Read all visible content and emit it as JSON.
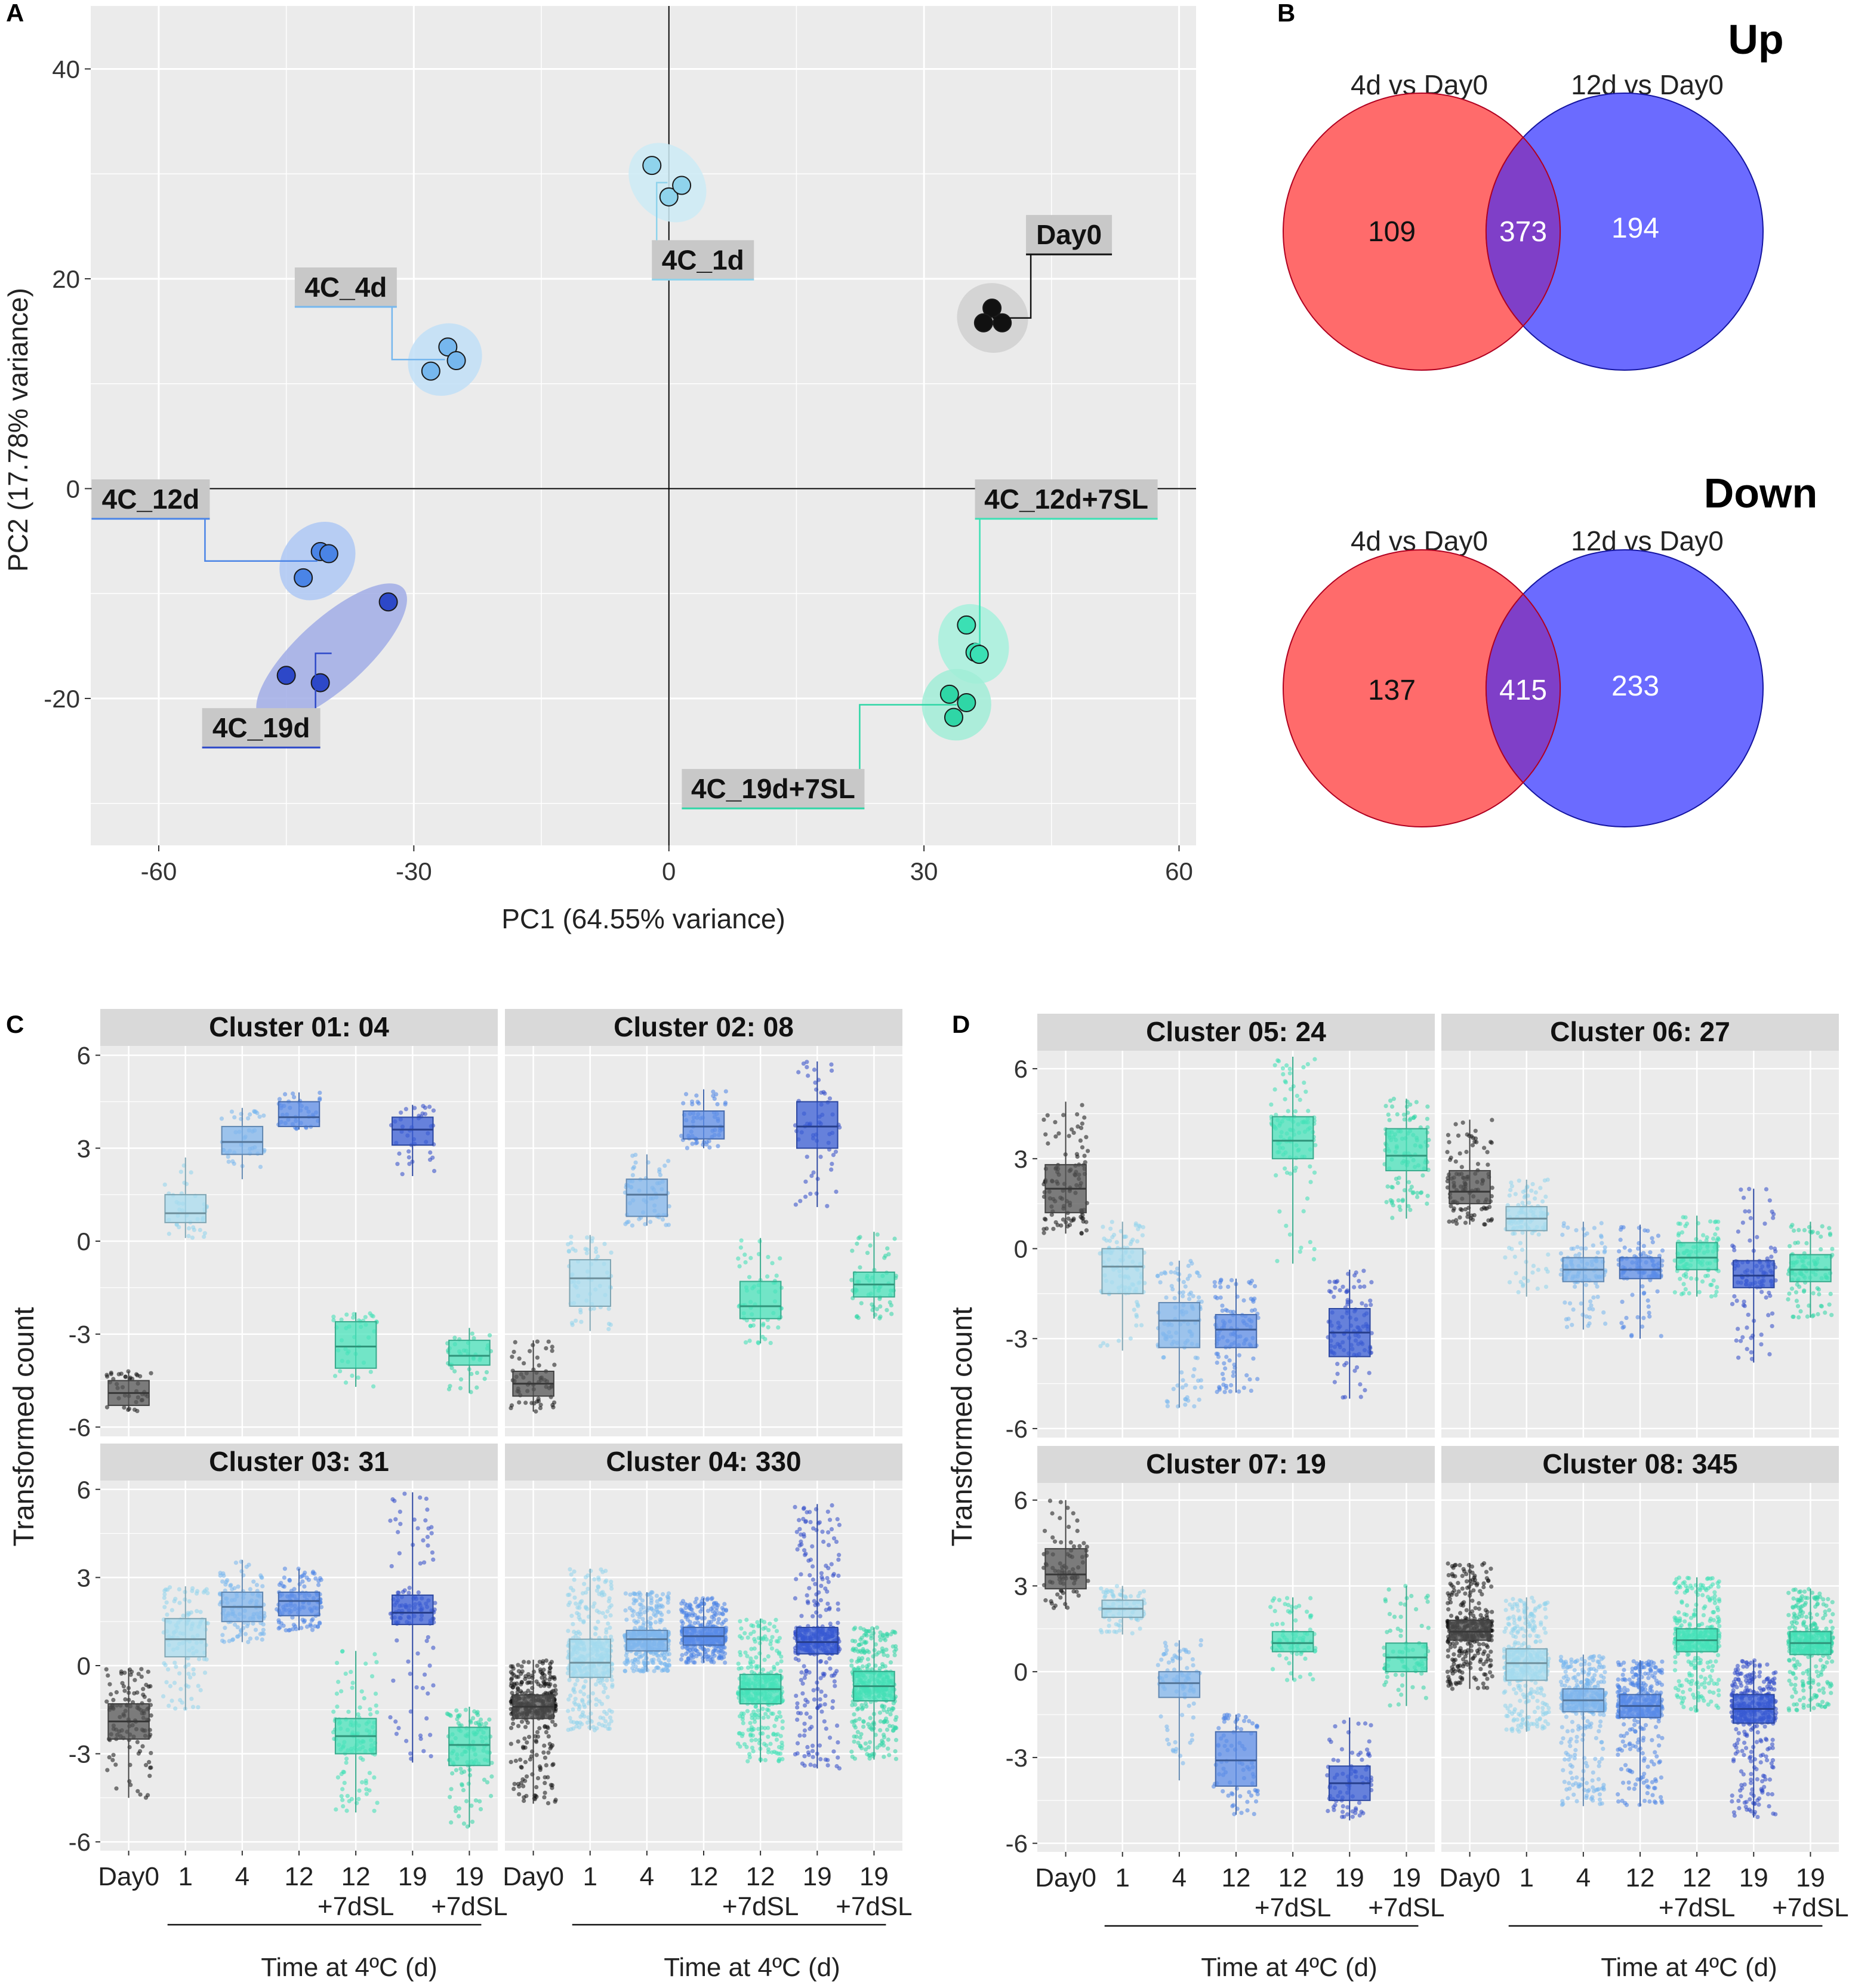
{
  "colors": {
    "panel_bg": "#ebebeb",
    "strip_bg": "#d9d9d9",
    "label_bg": "#c8c8c8",
    "day0": "#111111",
    "d1": "#8fd3ec",
    "d4": "#76b7ee",
    "d12": "#4a84e6",
    "d19": "#2d48c8",
    "d12sl": "#3be0b4",
    "d19sl": "#2fd6a6",
    "venn_left": "#ff6b6b",
    "venn_right": "#6b6bff",
    "venn_mid": "#7f3fc8",
    "box_day0": "#555555",
    "box_d1": "#a9dcef",
    "box_d4": "#82b5ec",
    "box_d12": "#5d8ee8",
    "box_d19": "#3a5ed6",
    "box_sl": "#49e3bb"
  },
  "panel_letters": {
    "a": "A",
    "b": "B",
    "c": "C",
    "d": "D"
  },
  "chart_data": [
    {
      "panel": "A",
      "type": "scatter",
      "xlabel": "PC1 (64.55% variance)",
      "ylabel": "PC2 (17.78% variance)",
      "xlim": [
        -68,
        62
      ],
      "ylim": [
        -34,
        46
      ],
      "xticks": [
        -60,
        -30,
        0,
        30,
        60
      ],
      "yticks": [
        -20,
        0,
        20,
        40
      ],
      "tick_labels_x": [
        "-60",
        "-30",
        "0",
        "30",
        "60"
      ],
      "tick_labels_y": [
        "-20",
        "0",
        "20",
        "40"
      ],
      "groups": [
        {
          "name": "4C_1d",
          "color_key": "d1",
          "points": [
            [
              -2,
              30.8
            ],
            [
              0,
              27.8
            ],
            [
              1.5,
              28.9
            ]
          ]
        },
        {
          "name": "Day0",
          "color_key": "day0",
          "points": [
            [
              38,
              17.2
            ],
            [
              37,
              15.8
            ],
            [
              39.2,
              15.8
            ]
          ]
        },
        {
          "name": "4C_4d",
          "color_key": "d4",
          "points": [
            [
              -28,
              11.2
            ],
            [
              -26,
              13.5
            ],
            [
              -25,
              12.2
            ]
          ]
        },
        {
          "name": "4C_12d",
          "color_key": "d12",
          "points": [
            [
              -41,
              -6
            ],
            [
              -43,
              -8.5
            ],
            [
              -40,
              -6.2
            ]
          ]
        },
        {
          "name": "4C_19d",
          "color_key": "d19",
          "points": [
            [
              -33,
              -10.8
            ],
            [
              -45,
              -17.8
            ],
            [
              -41,
              -18.5
            ]
          ]
        },
        {
          "name": "4C_12d+7SL",
          "color_key": "d12sl",
          "points": [
            [
              35,
              -13
            ],
            [
              36,
              -15.6
            ],
            [
              36.5,
              -15.8
            ]
          ]
        },
        {
          "name": "4C_19d+7SL",
          "color_key": "d19sl",
          "points": [
            [
              33,
              -19.6
            ],
            [
              35,
              -20.4
            ],
            [
              33.5,
              -21.8
            ]
          ]
        }
      ]
    },
    {
      "panel": "B",
      "type": "venn",
      "diagrams": [
        {
          "title": "Up",
          "left_label": "4d vs Day0",
          "right_label": "12d vs Day0",
          "left_only": "109",
          "both": "373",
          "right_only": "194"
        },
        {
          "title": "Down",
          "left_label": "4d vs Day0",
          "right_label": "12d vs Day0",
          "left_only": "137",
          "both": "415",
          "right_only": "233"
        }
      ]
    },
    {
      "panel": "C",
      "type": "box",
      "ylabel": "Transformed count",
      "xlabel": "Time at 4ºC (d)",
      "ylim": [
        -6.3,
        6.3
      ],
      "yticks": [
        -6,
        -3,
        0,
        3,
        6
      ],
      "tick_labels_y": [
        "-6",
        "-3",
        "0",
        "3",
        "6"
      ],
      "categories": [
        "Day0",
        "1",
        "4",
        "12",
        "12",
        "19",
        "19"
      ],
      "category_sub": [
        "",
        "",
        "",
        "",
        "+7dSL",
        "",
        "+7dSL"
      ],
      "facets": [
        {
          "title": "Cluster 01: 04",
          "n": 40,
          "boxes": [
            [
              -5.5,
              -5.3,
              -4.9,
              -4.5,
              -4.2
            ],
            [
              0.1,
              0.6,
              0.9,
              1.5,
              2.7
            ],
            [
              2.0,
              2.8,
              3.2,
              3.7,
              4.3
            ],
            [
              3.6,
              3.7,
              4.0,
              4.5,
              4.8
            ],
            [
              -4.7,
              -4.1,
              -3.4,
              -2.6,
              -2.3
            ],
            [
              2.1,
              3.1,
              3.6,
              4.0,
              4.4
            ],
            [
              -4.9,
              -4.0,
              -3.7,
              -3.2,
              -2.8
            ]
          ]
        },
        {
          "title": "Cluster 02: 08",
          "n": 60,
          "boxes": [
            [
              -5.5,
              -5.0,
              -4.6,
              -4.2,
              -3.2
            ],
            [
              -2.9,
              -2.1,
              -1.2,
              -0.6,
              0.2
            ],
            [
              0.5,
              0.8,
              1.5,
              2.0,
              2.8
            ],
            [
              3.0,
              3.3,
              3.7,
              4.2,
              4.9
            ],
            [
              -3.3,
              -2.5,
              -2.1,
              -1.3,
              0.1
            ],
            [
              1.1,
              3.0,
              3.7,
              4.5,
              5.8
            ],
            [
              -2.5,
              -1.8,
              -1.4,
              -1.0,
              0.3
            ]
          ]
        },
        {
          "title": "Cluster 03: 31",
          "n": 120,
          "boxes": [
            [
              -4.5,
              -2.5,
              -1.9,
              -1.3,
              -0.1
            ],
            [
              -1.5,
              0.3,
              0.9,
              1.6,
              2.7
            ],
            [
              0.8,
              1.5,
              2.0,
              2.5,
              3.6
            ],
            [
              1.2,
              1.7,
              2.2,
              2.5,
              3.3
            ],
            [
              -5.0,
              -3.0,
              -2.4,
              -1.8,
              0.5
            ],
            [
              -3.3,
              1.4,
              1.8,
              2.4,
              5.9
            ],
            [
              -5.5,
              -3.4,
              -2.7,
              -2.1,
              -1.4
            ]
          ]
        },
        {
          "title": "Cluster 04: 330",
          "n": 380,
          "boxes": [
            [
              -4.7,
              -1.8,
              -1.4,
              -1.0,
              0.2
            ],
            [
              -2.2,
              -0.4,
              0.1,
              0.9,
              3.3
            ],
            [
              -0.2,
              0.5,
              0.9,
              1.2,
              2.5
            ],
            [
              0.1,
              0.7,
              1.0,
              1.3,
              2.3
            ],
            [
              -3.3,
              -1.3,
              -0.8,
              -0.3,
              1.6
            ],
            [
              -3.5,
              0.4,
              0.8,
              1.3,
              5.5
            ],
            [
              -3.2,
              -1.2,
              -0.7,
              -0.2,
              1.3
            ]
          ]
        }
      ]
    },
    {
      "panel": "D",
      "type": "box",
      "ylabel": "Transformed count",
      "xlabel": "Time at 4ºC (d)",
      "ylim": [
        -6.3,
        6.6
      ],
      "yticks": [
        -6,
        -3,
        0,
        3,
        6
      ],
      "tick_labels_y": [
        "-6",
        "-3",
        "0",
        "3",
        "6"
      ],
      "categories": [
        "Day0",
        "1",
        "4",
        "12",
        "12",
        "19",
        "19"
      ],
      "category_sub": [
        "",
        "",
        "",
        "",
        "+7dSL",
        "",
        "+7dSL"
      ],
      "facets": [
        {
          "title": "Cluster 05: 24",
          "n": 110,
          "boxes": [
            [
              0.5,
              1.2,
              2.0,
              2.8,
              4.9
            ],
            [
              -3.4,
              -1.5,
              -0.6,
              0.0,
              0.9
            ],
            [
              -5.3,
              -3.3,
              -2.4,
              -1.8,
              -0.4
            ],
            [
              -4.8,
              -3.3,
              -2.7,
              -2.2,
              -1.0
            ],
            [
              -0.5,
              3.0,
              3.6,
              4.4,
              6.4
            ],
            [
              -5.0,
              -3.6,
              -2.8,
              -2.0,
              -0.7
            ],
            [
              1.0,
              2.6,
              3.1,
              4.0,
              5.0
            ]
          ]
        },
        {
          "title": "Cluster 06: 27",
          "n": 110,
          "boxes": [
            [
              0.8,
              1.5,
              1.9,
              2.6,
              4.3
            ],
            [
              -1.6,
              0.6,
              1.0,
              1.4,
              2.3
            ],
            [
              -2.7,
              -1.1,
              -0.7,
              -0.3,
              0.9
            ],
            [
              -3.0,
              -1.0,
              -0.7,
              -0.3,
              0.8
            ],
            [
              -1.6,
              -0.7,
              -0.3,
              0.2,
              1.1
            ],
            [
              -3.8,
              -1.3,
              -0.9,
              -0.4,
              2.0
            ],
            [
              -2.3,
              -1.1,
              -0.7,
              -0.2,
              0.9
            ]
          ]
        },
        {
          "title": "Cluster 07: 19",
          "n": 80,
          "boxes": [
            [
              2.2,
              2.9,
              3.4,
              4.3,
              6.0
            ],
            [
              1.3,
              1.9,
              2.2,
              2.5,
              3.0
            ],
            [
              -3.8,
              -0.9,
              -0.4,
              0.0,
              1.1
            ],
            [
              -5.0,
              -4.0,
              -3.1,
              -2.1,
              -1.5
            ],
            [
              -0.3,
              0.7,
              1.0,
              1.4,
              2.6
            ],
            [
              -5.2,
              -4.5,
              -3.9,
              -3.3,
              -1.6
            ],
            [
              -1.2,
              0.0,
              0.5,
              1.0,
              3.0
            ]
          ]
        },
        {
          "title": "Cluster 08: 345",
          "n": 380,
          "boxes": [
            [
              -0.6,
              1.1,
              1.4,
              1.8,
              3.8
            ],
            [
              -2.1,
              -0.3,
              0.3,
              0.8,
              2.6
            ],
            [
              -4.7,
              -1.4,
              -1.0,
              -0.6,
              0.6
            ],
            [
              -4.7,
              -1.6,
              -1.2,
              -0.8,
              0.4
            ],
            [
              -1.4,
              0.7,
              1.1,
              1.5,
              3.3
            ],
            [
              -5.1,
              -1.8,
              -1.3,
              -0.8,
              0.4
            ],
            [
              -1.4,
              0.6,
              1.0,
              1.4,
              2.9
            ]
          ]
        }
      ]
    }
  ]
}
